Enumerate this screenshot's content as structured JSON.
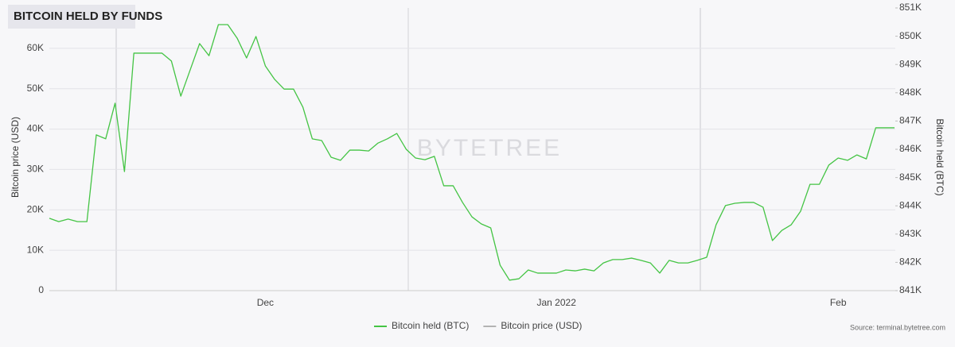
{
  "chart_data": {
    "type": "line",
    "title": "BITCOIN HELD BY FUNDS",
    "y_label": "Bitcoin price (USD)",
    "y2_label": "Bitcoin held (BTC)",
    "watermark": "BYTETREE",
    "source": "Source: terminal.bytetree.com",
    "categories": [
      null,
      null,
      null,
      null,
      null,
      null,
      null,
      null,
      null,
      null,
      null,
      null,
      null,
      null,
      null,
      null,
      null,
      null,
      null,
      null,
      null,
      null,
      null,
      "Dec",
      null,
      null,
      null,
      null,
      null,
      null,
      null,
      null,
      null,
      null,
      null,
      null,
      null,
      null,
      null,
      null,
      null,
      null,
      null,
      null,
      null,
      null,
      null,
      null,
      null,
      null,
      null,
      null,
      null,
      null,
      "Jan 2022",
      null,
      null,
      null,
      null,
      null,
      null,
      null,
      null,
      null,
      null,
      null,
      null,
      null,
      null,
      null,
      null,
      null,
      null,
      null,
      null,
      null,
      null,
      null,
      null,
      null,
      null,
      null,
      null,
      null,
      "Feb",
      null,
      null,
      null,
      null,
      null,
      null
    ],
    "series": [
      {
        "name": "Bitcoin held (BTC)",
        "color": "#44c444",
        "axis": "y2",
        "values": [
          843560,
          843440,
          843530,
          843440,
          843440,
          846510,
          846370,
          847630,
          845210,
          849400,
          849400,
          849400,
          849400,
          849120,
          847880,
          848810,
          849740,
          849310,
          850410,
          850410,
          849930,
          849230,
          849990,
          848950,
          848470,
          848130,
          848130,
          847490,
          846370,
          846310,
          845720,
          845610,
          845970,
          845970,
          845940,
          846220,
          846370,
          846560,
          846000,
          845690,
          845630,
          845750,
          844710,
          844710,
          844120,
          843610,
          843360,
          843220,
          841900,
          841370,
          841420,
          841730,
          841620,
          841620,
          841620,
          841730,
          841700,
          841760,
          841700,
          841980,
          842100,
          842100,
          842150,
          842070,
          841980,
          841620,
          842070,
          841980,
          841980,
          842070,
          842180,
          843330,
          844010,
          844090,
          844120,
          844120,
          843950,
          842770,
          843130,
          843330,
          843810,
          844760,
          844760,
          845440,
          845690,
          845610,
          845800,
          845660,
          846760,
          846760,
          846760
        ]
      },
      {
        "name": "Bitcoin price (USD)",
        "color": "#b3b3b3",
        "values": [
          null,
          null,
          null,
          null,
          null,
          null,
          null,
          null,
          null,
          null,
          null,
          null,
          null,
          null,
          null,
          null,
          null,
          null,
          null,
          null,
          null,
          null,
          null,
          null,
          null,
          null,
          null,
          null,
          null,
          null,
          null,
          null,
          null,
          null,
          null,
          null,
          null,
          null,
          null,
          null,
          null,
          null,
          null,
          null,
          null,
          null,
          null,
          null,
          null,
          null,
          null,
          null,
          null,
          null,
          null,
          null,
          null,
          null,
          null,
          null,
          null,
          null,
          null,
          null,
          null,
          null,
          null,
          null,
          null,
          null,
          null,
          null,
          null,
          null,
          null,
          null,
          null,
          null,
          null,
          null,
          null,
          null,
          null,
          null,
          null,
          null,
          null,
          null,
          null,
          null,
          null
        ]
      }
    ],
    "ylim": [
      0,
      70000
    ],
    "yticks": [
      0,
      {
        "value": 10000,
        "label": "10K"
      },
      {
        "value": 20000,
        "label": "20K"
      },
      {
        "value": 30000,
        "label": "30K"
      },
      {
        "value": 40000,
        "label": "40K"
      },
      {
        "value": 50000,
        "label": "50K"
      },
      {
        "value": 60000,
        "label": "60K"
      }
    ],
    "y2lim": [
      841000,
      851000
    ],
    "y2ticks": [
      {
        "value": 841000,
        "label": "841K"
      },
      {
        "value": 842000,
        "label": "842K"
      },
      {
        "value": 843000,
        "label": "843K"
      },
      {
        "value": 844000,
        "label": "844K"
      },
      {
        "value": 845000,
        "label": "845K"
      },
      {
        "value": 846000,
        "label": "846K"
      },
      {
        "value": 847000,
        "label": "847K"
      },
      {
        "value": 848000,
        "label": "848K"
      },
      {
        "value": 849000,
        "label": "849K"
      },
      {
        "value": 850000,
        "label": "850K"
      },
      {
        "value": 851000,
        "label": "851K"
      }
    ],
    "grid": true,
    "legend": "bottom"
  }
}
